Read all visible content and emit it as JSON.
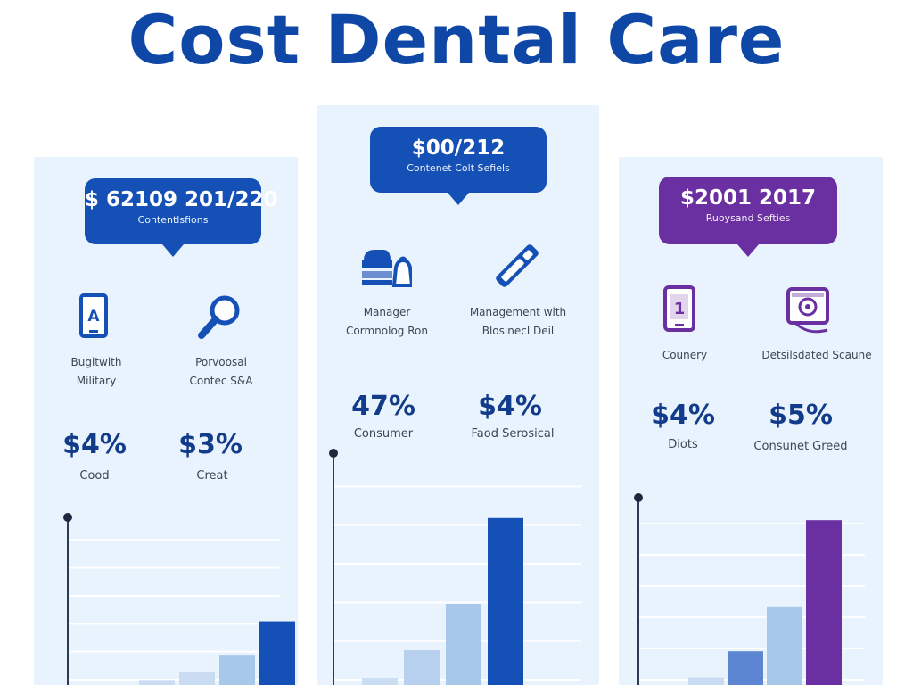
{
  "title": "Cost Dental Care",
  "colors": {
    "title": "#0f47a6",
    "panel_bg": "#e9f3fd",
    "blue": "#1450b6",
    "purple": "#6a2fa0",
    "light_blue": "#a8c8ea",
    "mid_blue": "#5c86d1"
  },
  "panels": [
    {
      "bubble": {
        "value": "$ 62109 201/220",
        "caption": "Contentlsfions"
      },
      "icons": [
        {
          "name": "tablet-icon",
          "label_lines": [
            "Bugitwith",
            "Military"
          ]
        },
        {
          "name": "magnifier-icon",
          "label_lines": [
            "Porvoosal",
            "Contec S&A"
          ]
        }
      ],
      "stats": [
        {
          "value": "$4%",
          "label": "Cood"
        },
        {
          "value": "$3%",
          "label": "Creat"
        }
      ]
    },
    {
      "bubble": {
        "value": "$00/212",
        "caption": "Contenet Colt Sefiels"
      },
      "icons": [
        {
          "name": "dental-bag-icon",
          "label_lines": [
            "Manager",
            "Cormnolog Ron"
          ]
        },
        {
          "name": "toothbrush-icon",
          "label_lines": [
            "Management with",
            "Blosinecl Deil"
          ]
        }
      ],
      "stats": [
        {
          "value": "47%",
          "label": "Consumer"
        },
        {
          "value": "$4%",
          "label": "Faod Serosical"
        }
      ]
    },
    {
      "bubble": {
        "value": "$2001 2017",
        "caption": "Ruoysand Sefties"
      },
      "icons": [
        {
          "name": "phone-icon",
          "label_lines": [
            "Counery"
          ]
        },
        {
          "name": "dental-monitor-icon",
          "label_lines": [
            "Detsilsdated Scaune"
          ]
        }
      ],
      "stats": [
        {
          "value": "$4%",
          "label": "Diots"
        },
        {
          "value": "$5%",
          "label": "Consunet Greed"
        }
      ]
    }
  ],
  "chart_data": [
    {
      "type": "bar",
      "values": [
        3,
        8,
        18,
        38
      ]
    },
    {
      "type": "bar",
      "values": [
        3,
        15,
        35,
        72
      ]
    },
    {
      "type": "bar",
      "values": [
        4,
        18,
        42,
        88
      ]
    }
  ]
}
